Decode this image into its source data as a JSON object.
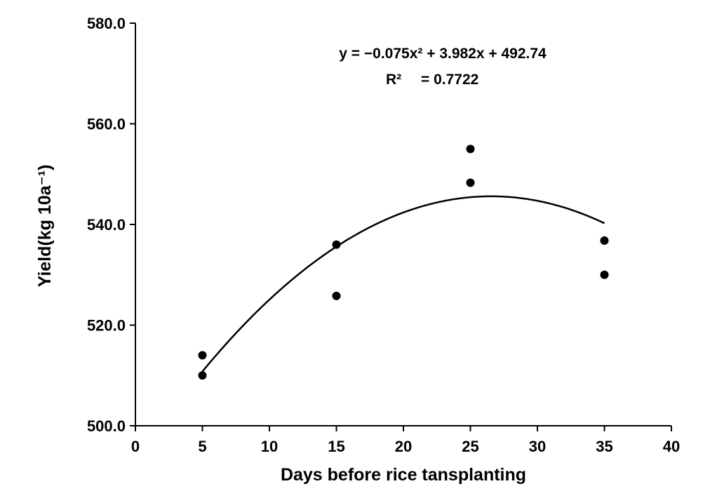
{
  "chart_data": {
    "type": "scatter",
    "title": "",
    "xlabel": "Days before rice tansplanting",
    "ylabel": "Yield(kg 10a⁻¹)",
    "xlim": [
      0,
      40
    ],
    "ylim": [
      500,
      580
    ],
    "x_ticks": [
      "0",
      "5",
      "10",
      "15",
      "20",
      "25",
      "30",
      "35",
      "40"
    ],
    "y_ticks": [
      "500.0",
      "520.0",
      "540.0",
      "560.0",
      "580.0"
    ],
    "grid": false,
    "legend": "none",
    "series": [
      {
        "points": [
          {
            "x": 5,
            "y": 514.0
          },
          {
            "x": 5,
            "y": 510.0
          },
          {
            "x": 15,
            "y": 536.0
          },
          {
            "x": 15,
            "y": 525.8
          },
          {
            "x": 25,
            "y": 555.0
          },
          {
            "x": 25,
            "y": 548.3
          },
          {
            "x": 35,
            "y": 536.8
          },
          {
            "x": 35,
            "y": 530.0
          }
        ]
      }
    ],
    "trendline": {
      "type": "polynomial",
      "order": 2,
      "coefficients": {
        "a": -0.075,
        "b": 3.982,
        "c": 492.74
      },
      "x_range": [
        5,
        35
      ]
    },
    "annotations": {
      "equation": "y = −0.075x² + 3.982x + 492.74",
      "r2_label": "R²",
      "r2_value": "= 0.7722"
    },
    "colors": {
      "marker": "#000000",
      "line": "#000000",
      "axis": "#000000"
    }
  }
}
